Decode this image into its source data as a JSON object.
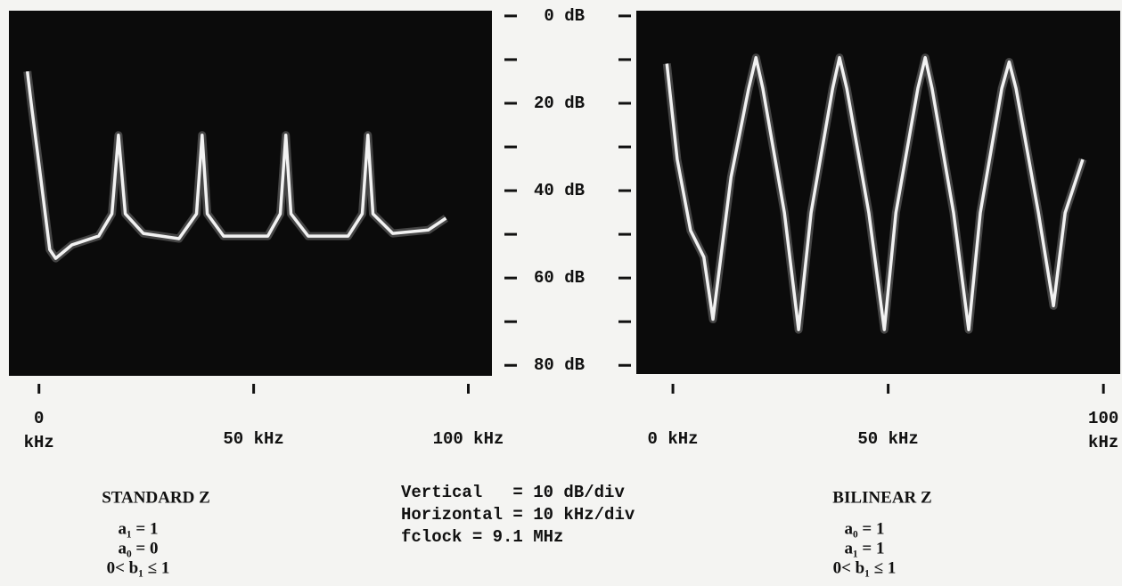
{
  "chart_data": [
    {
      "type": "line",
      "color": "#f2f2f2",
      "xlim": [
        -7,
        105.5
      ],
      "ylim": [
        82.4,
        -1.2
      ],
      "xticks": [
        {
          "value": 0,
          "label": "0\nkHz"
        },
        {
          "value": 50,
          "label": "50 kHz"
        },
        {
          "value": 100,
          "label": "100 kHz"
        }
      ],
      "yticks": [
        {
          "value": 0,
          "label": "0 dB"
        },
        {
          "value": 20,
          "label": "20 dB"
        },
        {
          "value": 40,
          "label": "40 dB"
        },
        {
          "value": 60,
          "label": "60 dB"
        },
        {
          "value": 80,
          "label": "80 dB"
        }
      ],
      "yminor_ticks": [
        10,
        30,
        50,
        70
      ],
      "x": [
        -2.7,
        -1.7,
        0.4,
        2.5,
        3.9,
        7.7,
        13.9,
        17,
        18.5,
        20.1,
        24.3,
        32.6,
        36.7,
        38,
        39.2,
        43,
        53.3,
        56.2,
        57.5,
        58.7,
        62.7,
        72,
        75.3,
        76.6,
        77.8,
        82.4,
        90.7,
        94.8
      ],
      "values": [
        12.7,
        20.8,
        37.1,
        53.5,
        55.5,
        52.4,
        50.4,
        45.3,
        27.3,
        45.3,
        49.8,
        51,
        45.3,
        27.3,
        45.3,
        50.4,
        50.4,
        45.3,
        27.3,
        45.3,
        50.4,
        50.4,
        45.3,
        27.3,
        45.3,
        49.8,
        49,
        46.3
      ],
      "caption": {
        "title": "STANDARD Z",
        "lines": [
          "a₁ = 1",
          "a₀ = 0",
          "0< b₁ ≤ 1"
        ]
      }
    },
    {
      "type": "line",
      "color": "#f2f2f2",
      "xlim": [
        -8.5,
        103.9
      ],
      "ylim": [
        82.4,
        -1.2
      ],
      "xticks": [
        {
          "value": 0,
          "label": "0 kHz"
        },
        {
          "value": 50,
          "label": "50 kHz"
        },
        {
          "value": 100,
          "label": "100\nkHz"
        }
      ],
      "x": [
        -1.4,
        1,
        4.1,
        7.2,
        9.3,
        13.5,
        17.6,
        19.3,
        20.9,
        25.9,
        29.2,
        32.1,
        37.1,
        38.7,
        40.4,
        45.5,
        49.1,
        51.8,
        56.9,
        58.6,
        60.2,
        65.2,
        68.7,
        71.4,
        76.4,
        78.1,
        79.7,
        84.9,
        88.4,
        91.1,
        95.2
      ],
      "values": [
        11,
        33,
        49.4,
        55.5,
        69.8,
        37.1,
        16.7,
        9.6,
        16.7,
        45.3,
        72.2,
        45.3,
        16.7,
        9.6,
        16.7,
        45.3,
        72.2,
        45.3,
        16.7,
        9.6,
        16.7,
        45.3,
        72.2,
        45.3,
        16.7,
        10.6,
        16.7,
        45.3,
        66.7,
        45.3,
        33
      ],
      "caption": {
        "title": "BILINEAR Z",
        "lines": [
          "a₀ = 1",
          "a₁ = 1",
          "0< b₁ ≤ 1"
        ]
      }
    }
  ],
  "notes": [
    "Vertical   = 10 dB/div",
    "Horizontal = 10 kHz/div",
    "fclock = 9.1 MHz"
  ]
}
